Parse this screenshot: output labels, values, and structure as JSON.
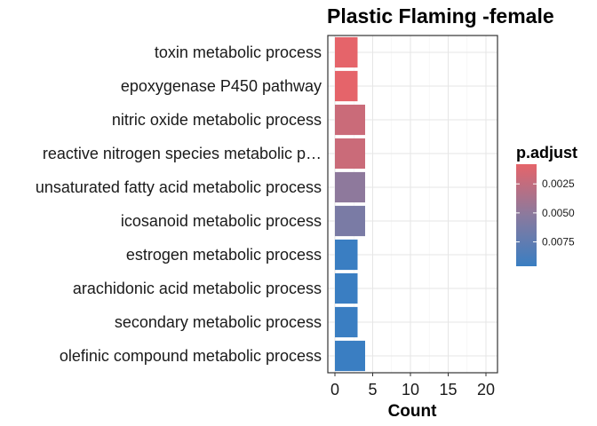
{
  "chart_data": {
    "type": "bar",
    "orientation": "horizontal",
    "title": "Plastic Flaming -female",
    "xlabel": "Count",
    "ylabel": "",
    "xlim": [
      0,
      20
    ],
    "xticks": [
      0,
      5,
      10,
      15,
      20
    ],
    "xtick_labels": [
      "0",
      "5",
      "10",
      "15",
      "20"
    ],
    "grid": true,
    "categories": [
      "toxin metabolic process",
      "epoxygenase P450 pathway",
      "nitric oxide metabolic process",
      "reactive nitrogen species metabolic p…",
      "unsaturated fatty acid metabolic process",
      "icosanoid metabolic process",
      "estrogen metabolic process",
      "arachidonic acid metabolic process",
      "secondary metabolic process",
      "olefinic compound metabolic process"
    ],
    "values": [
      3,
      3,
      4,
      4,
      4,
      4,
      3,
      3,
      3,
      4
    ],
    "p_adjust": [
      0.0008,
      0.0008,
      0.0021,
      0.0021,
      0.005,
      0.0061,
      0.0096,
      0.0096,
      0.0096,
      0.0096
    ],
    "legend": {
      "title": "p.adjust",
      "placement": "right",
      "min": 0.0008,
      "max": 0.0096,
      "ticks": [
        0.0025,
        0.005,
        0.0075
      ],
      "tick_labels": [
        "0.0025",
        "0.0050",
        "0.0075"
      ],
      "color_low": "#E5646A",
      "color_high": "#3A7EC2"
    }
  }
}
